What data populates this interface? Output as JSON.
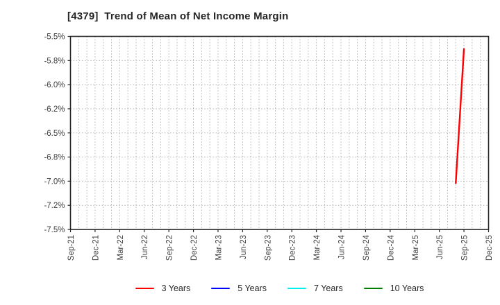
{
  "chart_data": {
    "type": "line",
    "title": "[4379]  Trend of Mean of Net Income Margin",
    "title_color": "#262626",
    "x_tick_labels": [
      "Sep-21",
      "Dec-21",
      "Mar-22",
      "Jun-22",
      "Sep-22",
      "Dec-22",
      "Mar-23",
      "Jun-23",
      "Sep-23",
      "Dec-23",
      "Mar-24",
      "Jun-24",
      "Sep-24",
      "Dec-24",
      "Mar-25",
      "Jun-25",
      "Sep-25",
      "Dec-25"
    ],
    "xlim_months": [
      "Sep-21",
      "Dec-25"
    ],
    "y_ticks": [
      -5.5,
      -5.75,
      -6.0,
      -6.25,
      -6.5,
      -6.75,
      -7.0,
      -7.25,
      -7.5
    ],
    "y_tick_labels": [
      "-5.5%",
      "-5.8%",
      "-6.0%",
      "-6.2%",
      "-6.5%",
      "-6.8%",
      "-7.0%",
      "-7.2%",
      "-7.5%"
    ],
    "ylim": [
      -7.5,
      -5.5
    ],
    "grid": {
      "on": true,
      "style": "dotted",
      "color": "#b0b0b0",
      "x_interval": "monthly",
      "y_interval": 0.25
    },
    "axis_color": "#262626",
    "tick_label_color": "#3d3d3d",
    "series": [
      {
        "name": "3 Years",
        "color": "#ff0000",
        "points": [
          {
            "x": "Aug-25",
            "y": -7.02
          },
          {
            "x": "Sep-25",
            "y": -5.63
          }
        ]
      },
      {
        "name": "5 Years",
        "color": "#0000ff",
        "points": []
      },
      {
        "name": "7 Years",
        "color": "#00eeee",
        "points": []
      },
      {
        "name": "10 Years",
        "color": "#008000",
        "points": []
      }
    ],
    "legend": {
      "position": "bottom-center",
      "entries": [
        {
          "label": "3 Years",
          "color": "#ff0000"
        },
        {
          "label": "5 Years",
          "color": "#0000ff"
        },
        {
          "label": "7 Years",
          "color": "#00eeee"
        },
        {
          "label": "10 Years",
          "color": "#008000"
        }
      ]
    }
  }
}
